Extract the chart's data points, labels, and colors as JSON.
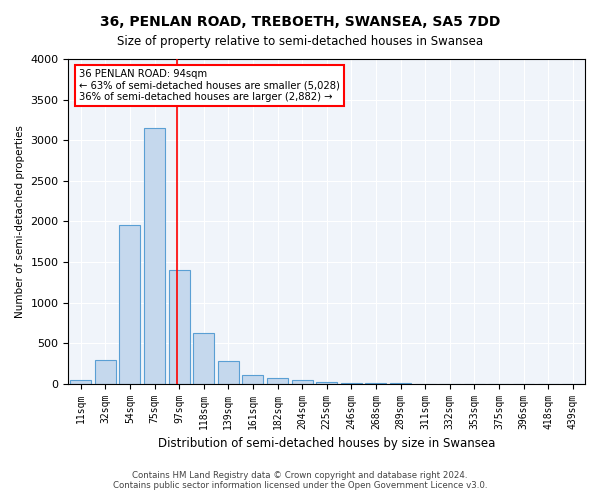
{
  "title1": "36, PENLAN ROAD, TREBOETH, SWANSEA, SA5 7DD",
  "title2": "Size of property relative to semi-detached houses in Swansea",
  "xlabel": "Distribution of semi-detached houses by size in Swansea",
  "ylabel": "Number of semi-detached properties",
  "bar_color": "#c5d8ed",
  "bar_edge_color": "#5a9fd4",
  "categories": [
    "11sqm",
    "32sqm",
    "54sqm",
    "75sqm",
    "97sqm",
    "118sqm",
    "139sqm",
    "161sqm",
    "182sqm",
    "204sqm",
    "225sqm",
    "246sqm",
    "268sqm",
    "289sqm",
    "311sqm",
    "332sqm",
    "353sqm",
    "375sqm",
    "396sqm",
    "418sqm",
    "439sqm"
  ],
  "values": [
    50,
    290,
    1950,
    3150,
    1400,
    620,
    280,
    110,
    65,
    40,
    15,
    5,
    5,
    3,
    2,
    1,
    1,
    1,
    0,
    0,
    0
  ],
  "property_line_x": 4,
  "property_sqm": "94sqm",
  "annotation_title": "36 PENLAN ROAD: 94sqm",
  "annotation_line1": "← 63% of semi-detached houses are smaller (5,028)",
  "annotation_line2": "36% of semi-detached houses are larger (2,882) →",
  "ylim": [
    0,
    4000
  ],
  "yticks": [
    0,
    500,
    1000,
    1500,
    2000,
    2500,
    3000,
    3500,
    4000
  ],
  "footer1": "Contains HM Land Registry data © Crown copyright and database right 2024.",
  "footer2": "Contains public sector information licensed under the Open Government Licence v3.0.",
  "background_color": "#f0f4fa"
}
